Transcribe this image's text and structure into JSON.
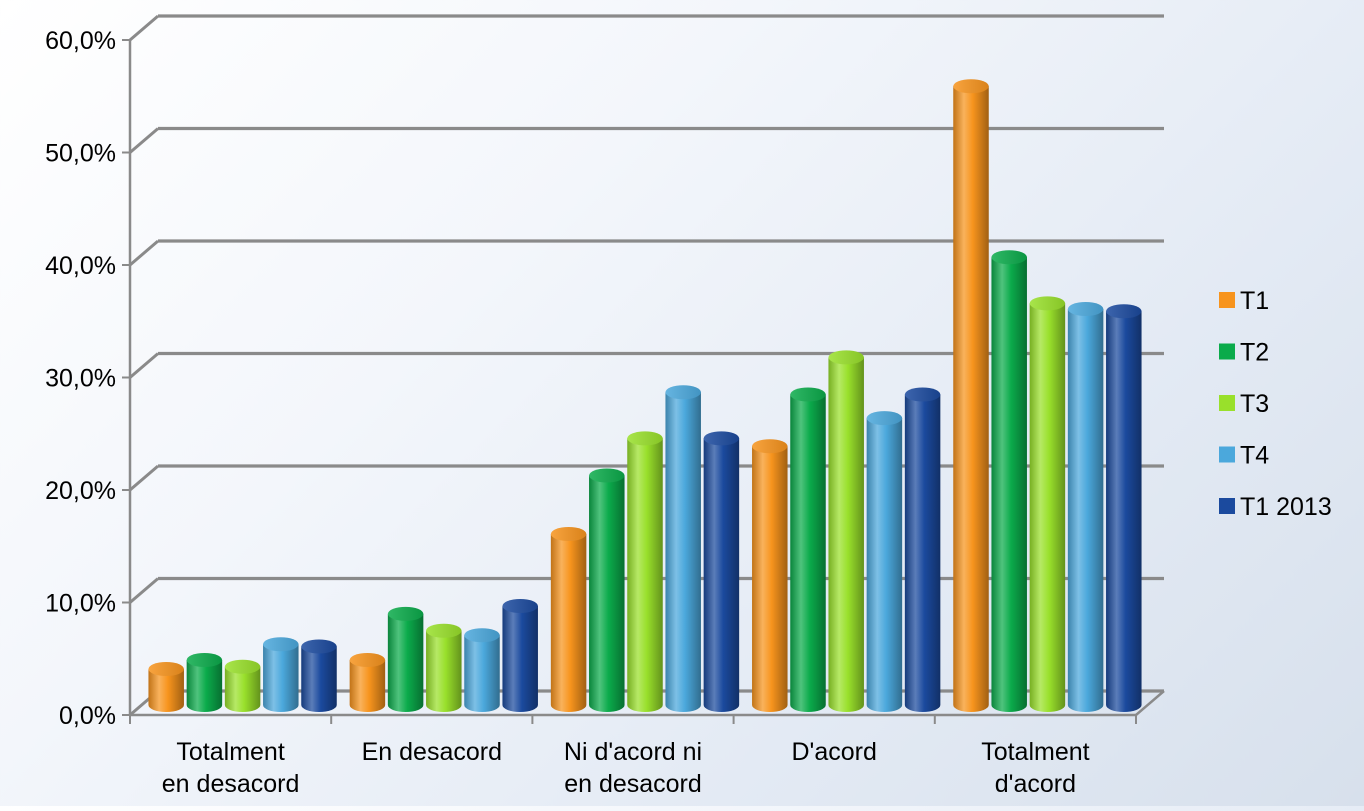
{
  "chart_data": {
    "type": "bar",
    "title": "",
    "xlabel": "",
    "ylabel": "",
    "ylim": [
      0,
      60
    ],
    "y_tick_values": [
      0,
      10,
      20,
      30,
      40,
      50,
      60
    ],
    "y_tick_labels": [
      "0,0%",
      "10,0%",
      "20,0%",
      "30,0%",
      "40,0%",
      "50,0%",
      "60,0%"
    ],
    "grid": true,
    "style": "3d-cylinder",
    "legend_position": "right",
    "categories": [
      [
        "Totalment",
        "en desacord"
      ],
      [
        "En desacord"
      ],
      [
        "Ni d'acord ni",
        "en desacord"
      ],
      [
        "D'acord"
      ],
      [
        "Totalment",
        "d'acord"
      ]
    ],
    "series": [
      {
        "name": "T1",
        "color": "#f7941d",
        "values": [
          3.2,
          4.0,
          15.2,
          23.0,
          55.0
        ]
      },
      {
        "name": "T2",
        "color": "#0bab4b",
        "values": [
          4.0,
          8.1,
          20.4,
          27.6,
          39.8
        ]
      },
      {
        "name": "T3",
        "color": "#99e02b",
        "values": [
          3.4,
          6.6,
          23.7,
          30.9,
          35.7
        ]
      },
      {
        "name": "T4",
        "color": "#4ba8dc",
        "values": [
          5.4,
          6.2,
          27.8,
          25.5,
          35.2
        ]
      },
      {
        "name": "T1 2013",
        "color": "#1b4a9e",
        "values": [
          5.2,
          8.8,
          23.7,
          27.6,
          35.0
        ]
      }
    ]
  }
}
